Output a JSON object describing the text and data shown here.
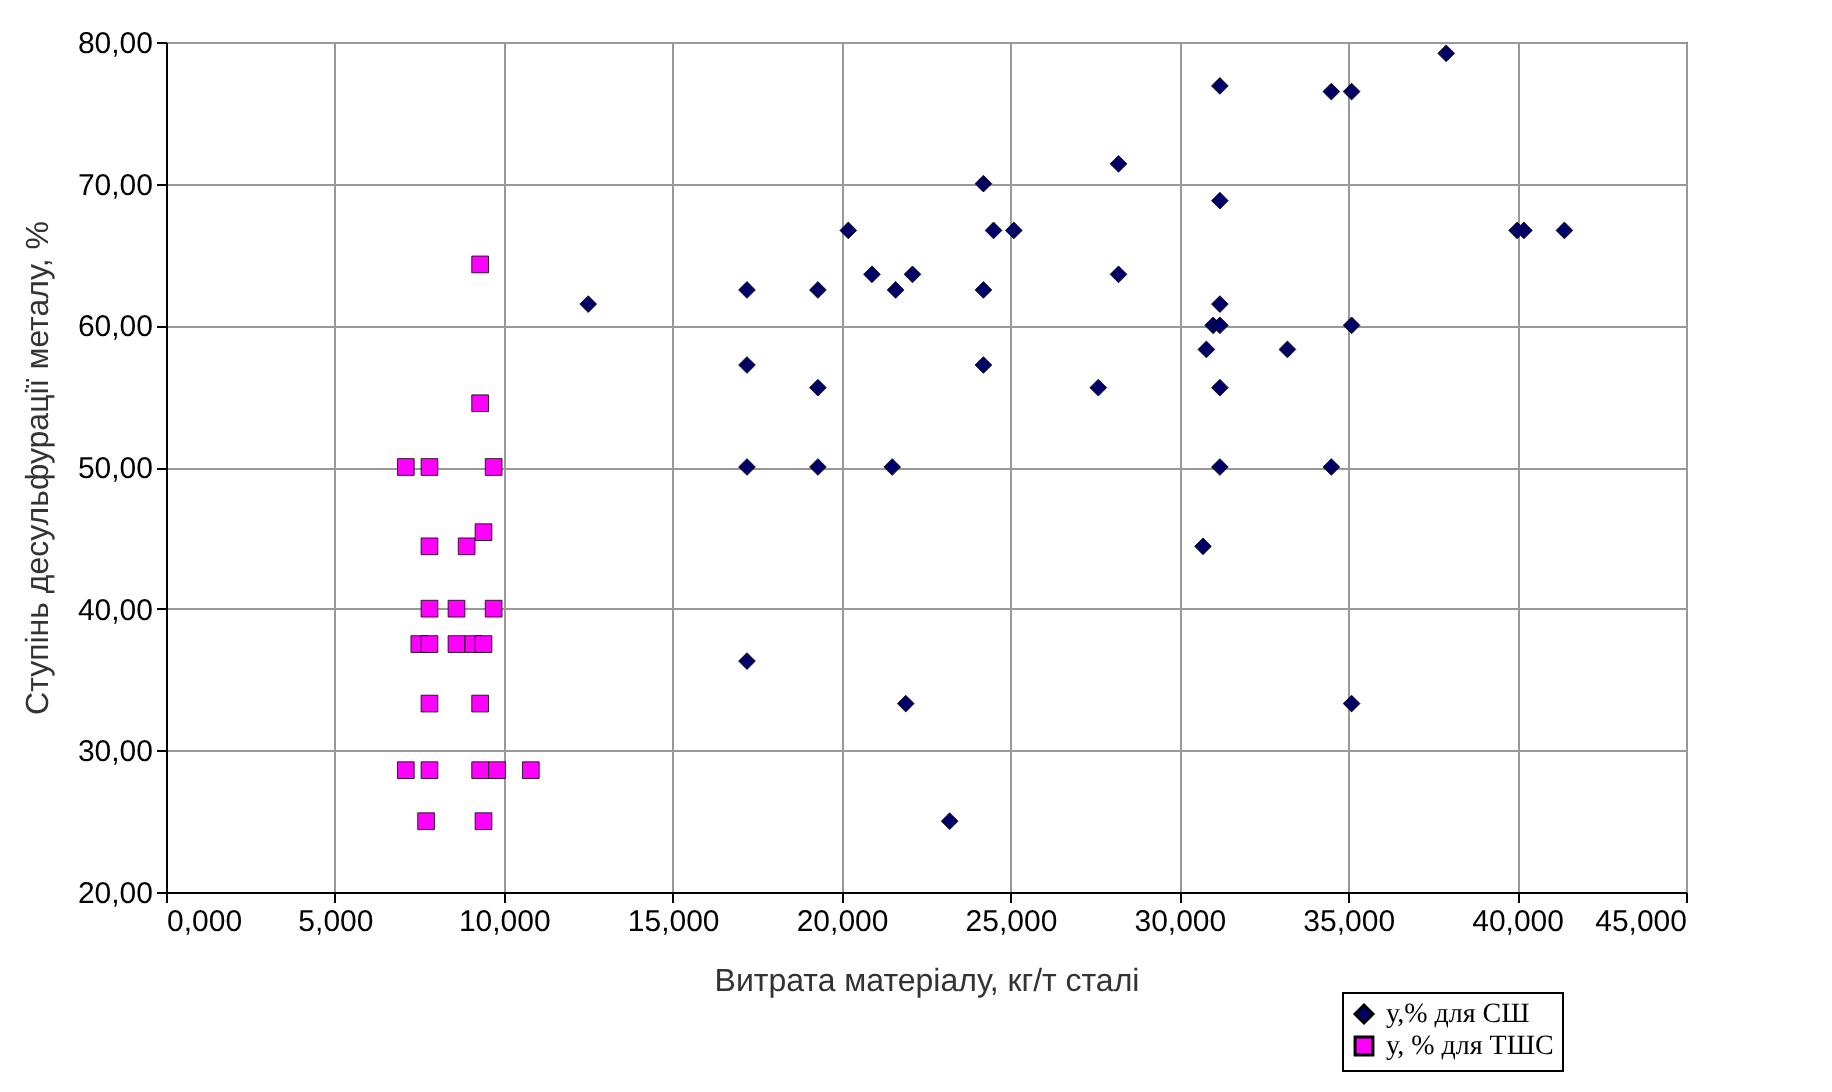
{
  "chart_data": {
    "type": "scatter",
    "xlabel": "Витрата матеріалу, кг/т сталі",
    "ylabel": "Ступінь десульфурації металу, %",
    "xlim": [
      0,
      45
    ],
    "ylim": [
      20,
      80
    ],
    "xticks": [
      {
        "value": 0,
        "label": "0,000"
      },
      {
        "value": 5,
        "label": "5,000"
      },
      {
        "value": 10,
        "label": "10,000"
      },
      {
        "value": 15,
        "label": "15,000"
      },
      {
        "value": 20,
        "label": "20,000"
      },
      {
        "value": 25,
        "label": "25,000"
      },
      {
        "value": 30,
        "label": "30,000"
      },
      {
        "value": 35,
        "label": "35,000"
      },
      {
        "value": 40,
        "label": "40,000"
      },
      {
        "value": 45,
        "label": "45,000"
      }
    ],
    "yticks": [
      {
        "value": 20,
        "label": "20,00"
      },
      {
        "value": 30,
        "label": "30,00"
      },
      {
        "value": 40,
        "label": "40,00"
      },
      {
        "value": 50,
        "label": "50,00"
      },
      {
        "value": 60,
        "label": "60,00"
      },
      {
        "value": 70,
        "label": "70,00"
      },
      {
        "value": 80,
        "label": "80,00"
      }
    ],
    "grid": true,
    "legend": "bottom right",
    "series": [
      {
        "name": "у,% для СШ",
        "color": "#000066",
        "marker": "diamond",
        "x": [
          12.5,
          17.2,
          17.2,
          17.2,
          17.2,
          19.3,
          19.3,
          19.3,
          20.2,
          20.9,
          21.6,
          22.1,
          21.5,
          21.9,
          23.2,
          24.2,
          24.2,
          24.2,
          24.5,
          25.1,
          28.2,
          28.2,
          27.6,
          31.2,
          31.2,
          31.2,
          31.0,
          31.2,
          30.8,
          31.2,
          31.2,
          30.7,
          33.2,
          34.5,
          35.1,
          35.1,
          34.5,
          35.1,
          37.9,
          40.0,
          40.2,
          41.4
        ],
        "values": [
          61.5,
          62.5,
          57.2,
          50,
          36.3,
          62.5,
          55.6,
          50,
          66.7,
          63.6,
          62.5,
          63.6,
          50,
          33.3,
          25,
          70,
          62.5,
          57.2,
          66.7,
          66.7,
          71.4,
          63.6,
          55.6,
          76.9,
          68.8,
          61.5,
          60,
          60,
          58.3,
          55.6,
          50,
          44.4,
          58.3,
          76.5,
          76.5,
          60,
          50,
          33.3,
          79.2,
          66.7,
          66.7,
          66.7
        ]
      },
      {
        "name": "у, % для ТШС",
        "color": "#ff00ff",
        "marker": "square",
        "x": [
          9.3,
          9.3,
          7.1,
          7.8,
          9.7,
          7.8,
          8.9,
          9.4,
          7.8,
          8.6,
          9.7,
          7.5,
          7.8,
          8.6,
          9.1,
          9.4,
          7.8,
          9.3,
          7.1,
          7.8,
          9.3,
          9.8,
          10.8,
          7.7,
          9.4
        ],
        "values": [
          64.3,
          54.5,
          50,
          50,
          50,
          44.4,
          44.4,
          45.4,
          40,
          40,
          40,
          37.5,
          37.5,
          37.5,
          37.5,
          37.5,
          33.3,
          33.3,
          28.6,
          28.6,
          28.6,
          28.6,
          28.6,
          25,
          25
        ]
      }
    ]
  }
}
